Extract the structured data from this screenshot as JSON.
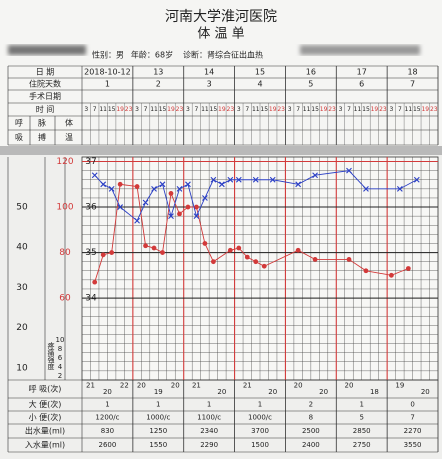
{
  "header": {
    "hospital": "河南大学淮河医院",
    "title": "体 温 单",
    "gender": "性别：男",
    "age": "年龄：68岁",
    "diagnosis": "诊断：肾综合征出血热"
  },
  "table": {
    "date_label": "日 期",
    "dates": [
      "2018-10-12",
      "13",
      "14",
      "15",
      "16",
      "17",
      "18"
    ],
    "days_label": "住院天数",
    "days": [
      "1",
      "2",
      "3",
      "4",
      "5",
      "6",
      "7"
    ],
    "surgery_label": "手术日期",
    "time_label": "时 间",
    "times": [
      "3",
      "7",
      "11",
      "15",
      "19",
      "23"
    ],
    "col_labels": [
      "呼",
      "脉",
      "体",
      "吸",
      "搏",
      "温"
    ]
  },
  "chart": {
    "temp_lim": [
      32.2,
      37.1
    ],
    "temp_ticks": [
      34,
      35,
      36,
      37
    ],
    "pulse_lim": [
      24,
      122
    ],
    "pulse_ticks": [
      60,
      80,
      100,
      120
    ],
    "breath_lim": [
      7,
      62.4
    ],
    "breath_ticks": [
      10,
      20,
      30,
      40,
      50
    ],
    "pain_label": "疼痛强度",
    "pain_lim": [
      1.1,
      50.7
    ],
    "pain_ticks": [
      10,
      8,
      6,
      4,
      2
    ],
    "temperature": {
      "color": "#2b3fc4",
      "x": [
        1,
        2,
        3,
        4,
        6,
        7,
        8,
        9,
        10,
        11,
        12,
        13,
        14,
        15,
        16,
        17,
        18,
        20,
        22,
        25,
        27,
        31,
        33,
        37,
        39
      ],
      "values": [
        36.7,
        36.5,
        36.4,
        36.0,
        35.7,
        36.1,
        36.4,
        36.5,
        35.8,
        36.4,
        36.5,
        35.8,
        36.2,
        36.6,
        36.5,
        36.6,
        36.6,
        36.6,
        36.6,
        36.5,
        36.7,
        36.8,
        36.4,
        36.4,
        36.6
      ]
    },
    "pulse": {
      "color": "#d23a3a",
      "x": [
        1,
        2,
        3,
        4,
        6,
        7,
        8,
        9,
        10,
        11,
        12,
        13,
        14,
        15,
        17,
        18,
        19,
        20,
        21,
        25,
        27,
        31,
        33,
        36,
        38
      ],
      "values": [
        67,
        79,
        80,
        110,
        109,
        83,
        82,
        80,
        106,
        97,
        100,
        100,
        84,
        76,
        81,
        82,
        78,
        76,
        74,
        81,
        77,
        77,
        72,
        70,
        73
      ]
    }
  },
  "footer": {
    "rows": [
      {
        "label": "呼 吸(次)",
        "cells": [
          [
            "21",
            "20",
            "22"
          ],
          [
            "20",
            "19",
            "20"
          ],
          [
            "21",
            "20"
          ],
          [
            "21",
            "20"
          ],
          [
            "20",
            "20"
          ],
          [
            "20",
            "18"
          ],
          [
            "19",
            "20"
          ]
        ]
      },
      {
        "label": "大 便(次)",
        "cells": [
          "1",
          "1",
          "1",
          "1",
          "2",
          "1",
          "0"
        ]
      },
      {
        "label": "小 便(次)",
        "cells": [
          "1200/c",
          "1000/c",
          "1100/c",
          "1000/c",
          "8",
          "5",
          "7"
        ]
      },
      {
        "label": "出水量(ml)",
        "cells": [
          "830",
          "1250",
          "2340",
          "3700",
          "2500",
          "2850",
          "2270"
        ]
      },
      {
        "label": "入水量(ml)",
        "cells": [
          "2600",
          "1550",
          "2290",
          "1500",
          "2400",
          "2750",
          "3550"
        ]
      }
    ]
  }
}
